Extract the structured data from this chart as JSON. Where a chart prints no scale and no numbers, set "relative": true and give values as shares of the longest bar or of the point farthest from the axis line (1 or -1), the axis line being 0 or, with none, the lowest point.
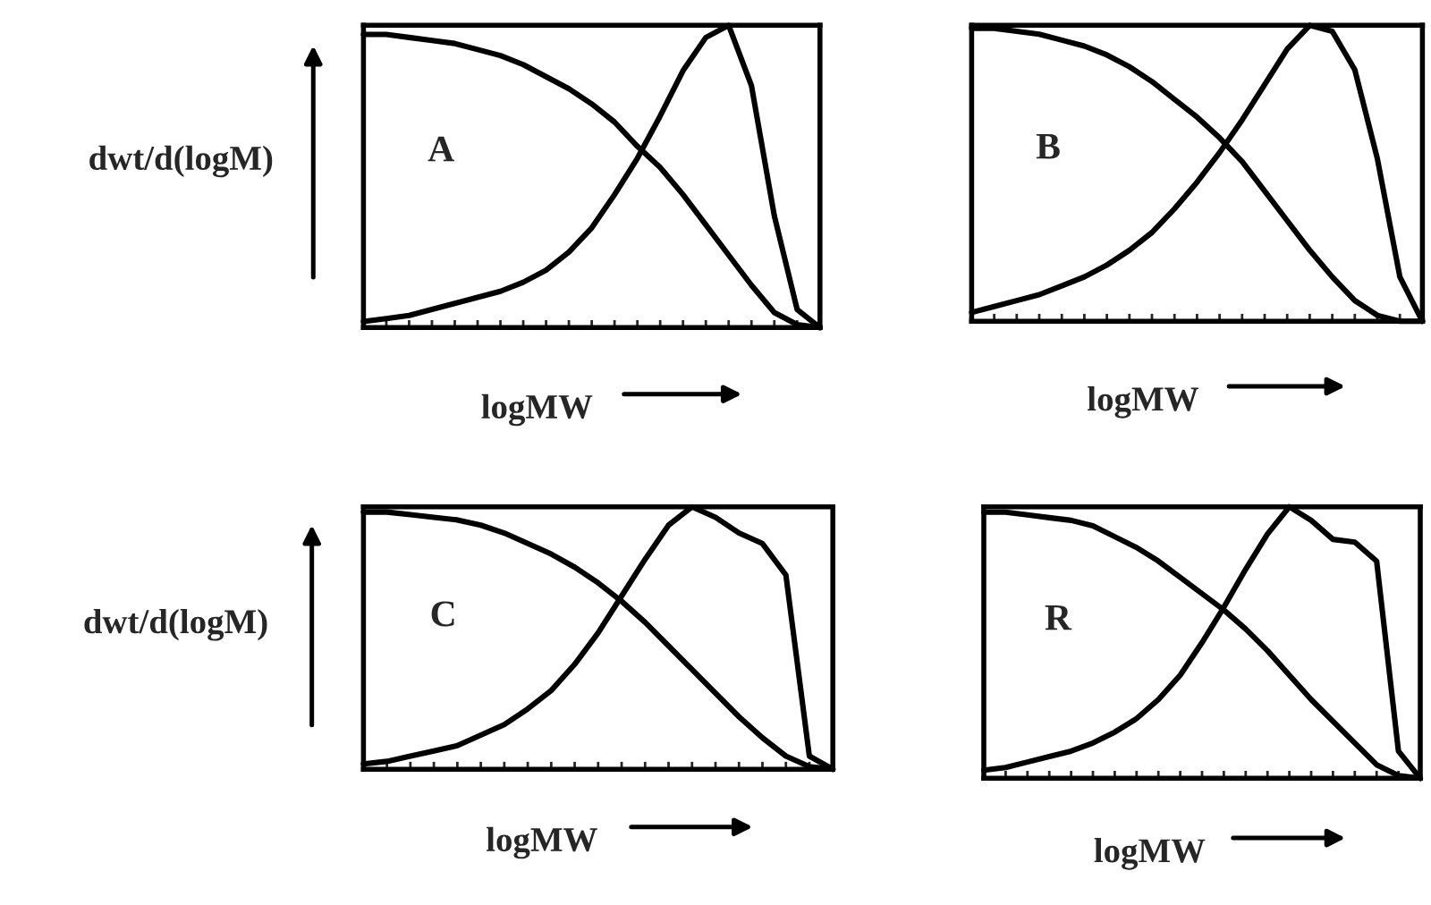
{
  "chart_data": [
    {
      "type": "line",
      "relative": true,
      "ylabel": "dwt/d(logM)",
      "xlabel": "logMW",
      "annotations": [
        {
          "text": "A"
        }
      ],
      "categories": [
        null,
        null,
        null,
        null,
        null,
        null,
        null,
        null,
        null,
        null,
        null,
        null,
        null,
        null,
        null,
        null,
        null,
        null,
        null,
        null,
        null
      ],
      "series": [
        {
          "color": "#000000",
          "values": [
            0.02,
            0.03,
            0.04,
            0.06,
            0.08,
            0.1,
            0.12,
            0.15,
            0.19,
            0.25,
            0.33,
            0.44,
            0.56,
            0.7,
            0.85,
            0.96,
            1.0,
            0.8,
            0.37,
            0.06,
            0.0
          ]
        },
        {
          "color": "#000000",
          "values": [
            0.97,
            0.97,
            0.96,
            0.95,
            0.94,
            0.92,
            0.9,
            0.87,
            0.83,
            0.79,
            0.74,
            0.68,
            0.6,
            0.53,
            0.44,
            0.34,
            0.24,
            0.14,
            0.05,
            0.01,
            0.0
          ]
        }
      ]
    },
    {
      "type": "line",
      "relative": true,
      "xlabel": "logMW",
      "annotations": [
        {
          "text": "B"
        }
      ],
      "categories": [
        null,
        null,
        null,
        null,
        null,
        null,
        null,
        null,
        null,
        null,
        null,
        null,
        null,
        null,
        null,
        null,
        null,
        null,
        null,
        null,
        null
      ],
      "series": [
        {
          "color": "#000000",
          "values": [
            0.03,
            0.05,
            0.07,
            0.09,
            0.12,
            0.15,
            0.19,
            0.24,
            0.3,
            0.38,
            0.47,
            0.57,
            0.68,
            0.8,
            0.92,
            1.0,
            0.98,
            0.85,
            0.55,
            0.15,
            0.0
          ]
        },
        {
          "color": "#000000",
          "values": [
            0.99,
            0.99,
            0.98,
            0.97,
            0.95,
            0.93,
            0.9,
            0.86,
            0.81,
            0.75,
            0.69,
            0.62,
            0.54,
            0.44,
            0.34,
            0.24,
            0.15,
            0.07,
            0.02,
            0.0,
            0.0
          ]
        }
      ]
    },
    {
      "type": "line",
      "relative": true,
      "ylabel": "dwt/d(logM)",
      "xlabel": "logMW",
      "annotations": [
        {
          "text": "C"
        }
      ],
      "categories": [
        null,
        null,
        null,
        null,
        null,
        null,
        null,
        null,
        null,
        null,
        null,
        null,
        null,
        null,
        null,
        null,
        null,
        null,
        null,
        null,
        null
      ],
      "series": [
        {
          "color": "#000000",
          "values": [
            0.02,
            0.03,
            0.05,
            0.07,
            0.09,
            0.13,
            0.17,
            0.23,
            0.3,
            0.4,
            0.52,
            0.66,
            0.8,
            0.93,
            1.0,
            0.96,
            0.9,
            0.86,
            0.74,
            0.05,
            0.0
          ]
        },
        {
          "color": "#000000",
          "values": [
            0.98,
            0.98,
            0.97,
            0.96,
            0.95,
            0.93,
            0.9,
            0.86,
            0.82,
            0.77,
            0.71,
            0.64,
            0.56,
            0.47,
            0.38,
            0.29,
            0.2,
            0.12,
            0.05,
            0.01,
            0.0
          ]
        }
      ]
    },
    {
      "type": "line",
      "relative": true,
      "xlabel": "logMW",
      "annotations": [
        {
          "text": "R"
        }
      ],
      "categories": [
        null,
        null,
        null,
        null,
        null,
        null,
        null,
        null,
        null,
        null,
        null,
        null,
        null,
        null,
        null,
        null,
        null,
        null,
        null,
        null,
        null
      ],
      "series": [
        {
          "color": "#000000",
          "values": [
            0.03,
            0.04,
            0.06,
            0.08,
            0.1,
            0.13,
            0.17,
            0.22,
            0.29,
            0.38,
            0.5,
            0.63,
            0.77,
            0.9,
            1.0,
            0.95,
            0.88,
            0.87,
            0.8,
            0.1,
            0.0
          ]
        },
        {
          "color": "#000000",
          "values": [
            0.98,
            0.98,
            0.97,
            0.96,
            0.95,
            0.93,
            0.89,
            0.85,
            0.8,
            0.74,
            0.68,
            0.62,
            0.55,
            0.47,
            0.38,
            0.29,
            0.21,
            0.13,
            0.05,
            0.01,
            0.0
          ]
        }
      ]
    }
  ]
}
